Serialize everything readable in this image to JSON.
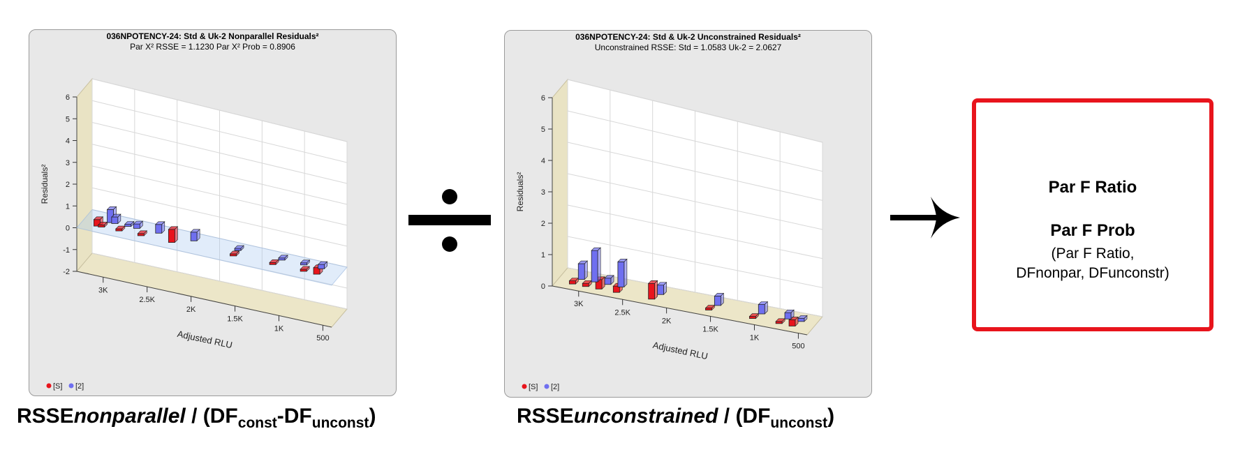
{
  "left_chart": {
    "title": "036NPOTENCY-24: Std & Uk-2  Nonparallel Residuals²",
    "subtitle": "Par X² RSSE = 1.1230 Par X² Prob = 0.8906",
    "ylabel": "Residuals²",
    "xlabel": "Adjusted RLU",
    "y_ticks": [
      "6",
      "5",
      "4",
      "3",
      "2",
      "1",
      "0",
      "-1",
      "-2"
    ],
    "x_ticks": [
      "3K",
      "2.5K",
      "2K",
      "1.5K",
      "1K",
      "500"
    ],
    "legend": [
      "[S]",
      "[2]"
    ]
  },
  "right_chart": {
    "title": "036NPOTENCY-24: Std & Uk-2  Unconstrained Residuals²",
    "subtitle": "Unconstrained RSSE: Std = 1.0583  Uk-2 = 2.0627",
    "ylabel": "Residuals²",
    "xlabel": "Adjusted RLU",
    "y_ticks": [
      "6",
      "5",
      "4",
      "3",
      "2",
      "1",
      "0"
    ],
    "x_ticks": [
      "3K",
      "2.5K",
      "2K",
      "1.5K",
      "1K",
      "500"
    ],
    "legend": [
      "[S]",
      "[2]"
    ]
  },
  "chart_data": [
    {
      "type": "bar",
      "title": "036NPOTENCY-24: Std & Uk-2  Nonparallel Residuals²",
      "xlabel": "Adjusted RLU",
      "ylabel": "Residuals²",
      "ylim": [
        -2,
        6
      ],
      "xlim": [
        3200,
        500
      ],
      "series": [
        {
          "name": "[S]",
          "color": "#e8141c",
          "points": [
            [
              3150,
              0.3
            ],
            [
              3100,
              0.1
            ],
            [
              2900,
              0.05
            ],
            [
              2650,
              0.1
            ],
            [
              2300,
              0.6
            ],
            [
              1600,
              0.05
            ],
            [
              1150,
              0.05
            ],
            [
              800,
              0.05
            ],
            [
              650,
              0.3
            ]
          ]
        },
        {
          "name": "[2]",
          "color": "#6f6ff0",
          "points": [
            [
              3050,
              0.6
            ],
            [
              3000,
              0.3
            ],
            [
              2850,
              0.1
            ],
            [
              2750,
              0.2
            ],
            [
              2500,
              0.4
            ],
            [
              2100,
              0.4
            ],
            [
              1600,
              0.05
            ],
            [
              1100,
              0.1
            ],
            [
              850,
              0.05
            ],
            [
              650,
              0.2
            ]
          ]
        }
      ]
    },
    {
      "type": "bar",
      "title": "036NPOTENCY-24: Std & Uk-2  Unconstrained Residuals²",
      "xlabel": "Adjusted RLU",
      "ylabel": "Residuals²",
      "ylim": [
        0,
        6
      ],
      "xlim": [
        3200,
        500
      ],
      "series": [
        {
          "name": "[S]",
          "color": "#e8141c",
          "points": [
            [
              3150,
              0.1
            ],
            [
              3000,
              0.1
            ],
            [
              2850,
              0.3
            ],
            [
              2650,
              0.2
            ],
            [
              2250,
              0.5
            ],
            [
              1600,
              0.05
            ],
            [
              1100,
              0.05
            ],
            [
              800,
              0.05
            ],
            [
              650,
              0.2
            ]
          ]
        },
        {
          "name": "[2]",
          "color": "#6f6ff0",
          "points": [
            [
              3100,
              0.5
            ],
            [
              2950,
              1.0
            ],
            [
              2800,
              0.2
            ],
            [
              2650,
              0.8
            ],
            [
              2200,
              0.3
            ],
            [
              1550,
              0.3
            ],
            [
              1050,
              0.3
            ],
            [
              750,
              0.2
            ],
            [
              600,
              0.1
            ]
          ]
        }
      ]
    }
  ],
  "captions": {
    "left": {
      "main": "RSSE",
      "italic": "nonparallel",
      "slash": "/",
      "open": "(DF",
      "sub1": "const",
      "minus": "-DF",
      "sub2": "unconst",
      "close": ")"
    },
    "right": {
      "main": "RSSE",
      "italic": "unconstrained",
      "slash": "/",
      "open": "(DF",
      "sub1": "unconst",
      "close": ")"
    }
  },
  "result": {
    "line1": "Par F Ratio",
    "line2": "Par F Prob",
    "line3": "(Par F Ratio,",
    "line4": "DFnonpar, DFunconstr)"
  },
  "colors": {
    "std": "#e8141c",
    "uk2": "#6f6ff0",
    "box_border": "#e8141c"
  }
}
